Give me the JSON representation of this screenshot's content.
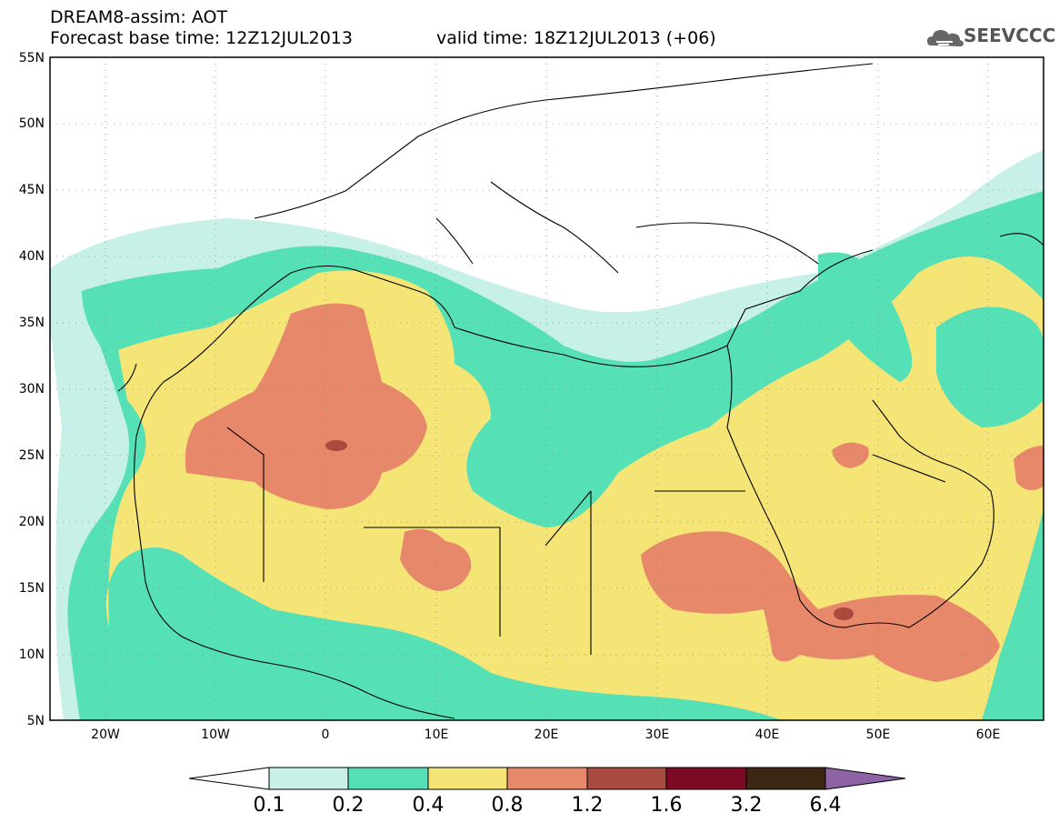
{
  "header": {
    "title": "DREAM8-assim: AOT",
    "base_time": "Forecast base time: 12Z12JUL2013",
    "valid_time": "valid time: 18Z12JUL2013 (+06)",
    "logo_text": "SEEVCCC"
  },
  "map": {
    "lon_range": [
      -25,
      65
    ],
    "lat_range": [
      5,
      55
    ],
    "lat_labels": [
      "5N",
      "10N",
      "15N",
      "20N",
      "25N",
      "30N",
      "35N",
      "40N",
      "45N",
      "50N",
      "55N"
    ],
    "lat_values": [
      5,
      10,
      15,
      20,
      25,
      30,
      35,
      40,
      45,
      50,
      55
    ],
    "lon_labels": [
      "20W",
      "10W",
      "0",
      "10E",
      "20E",
      "30E",
      "40E",
      "50E",
      "60E"
    ],
    "lon_values": [
      -20,
      -10,
      0,
      10,
      20,
      30,
      40,
      50,
      60
    ],
    "grid": "dotted"
  },
  "colorbar": {
    "levels": [
      "0.1",
      "0.2",
      "0.4",
      "0.8",
      "1.2",
      "1.6",
      "3.2",
      "6.4"
    ],
    "colors": [
      "#ffffff",
      "#c6f0e8",
      "#55e0b6",
      "#f5e476",
      "#e8886b",
      "#a94a3f",
      "#7d0a25",
      "#3c2614",
      "#8d63a6"
    ]
  }
}
